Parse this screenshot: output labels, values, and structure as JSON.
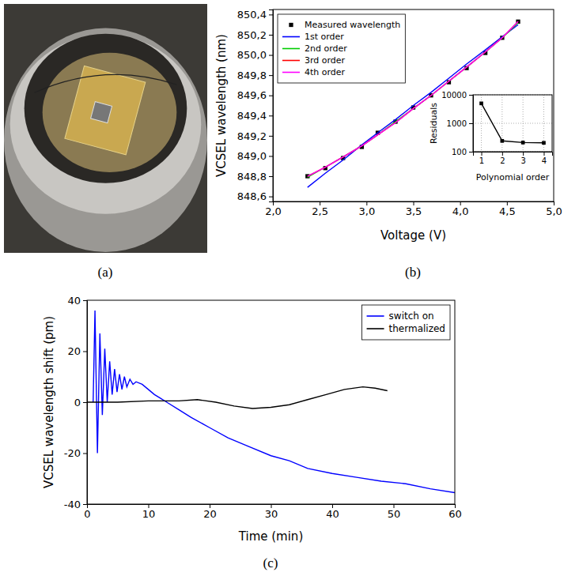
{
  "chart_data": [
    {
      "type": "image",
      "caption": "(a)"
    },
    {
      "type": "line",
      "caption": "(b)",
      "x_label": "Voltage (V)",
      "y_label": "VCSEL wavelength (nm)",
      "xlim": [
        2,
        5
      ],
      "xticks": [
        {
          "value": 2,
          "label": "2,0"
        },
        {
          "value": 2.5,
          "label": "2,5"
        },
        {
          "value": 3,
          "label": "3,0"
        },
        {
          "value": 3.5,
          "label": "3,5"
        },
        {
          "value": 4,
          "label": "4,0"
        },
        {
          "value": 4.5,
          "label": "4,5"
        },
        {
          "value": 5,
          "label": "5,0"
        }
      ],
      "ylim": [
        848.55,
        850.45
      ],
      "yticks": [
        {
          "value": 848.6,
          "label": "848,6"
        },
        {
          "value": 848.8,
          "label": "848,8"
        },
        {
          "value": 849.0,
          "label": "849,0"
        },
        {
          "value": 849.2,
          "label": "849,2"
        },
        {
          "value": 849.4,
          "label": "849,4"
        },
        {
          "value": 849.6,
          "label": "849,6"
        },
        {
          "value": 849.8,
          "label": "849,8"
        },
        {
          "value": 850.0,
          "label": "850,0"
        },
        {
          "value": 850.2,
          "label": "850,2"
        },
        {
          "value": 850.4,
          "label": "850,4"
        }
      ],
      "grid": false,
      "legend": "upper left",
      "x": [
        2.37,
        2.56,
        2.75,
        2.95,
        3.12,
        3.31,
        3.5,
        3.69,
        3.88,
        4.07,
        4.27,
        4.45,
        4.62
      ],
      "series": [
        {
          "name": "Measured wavelength",
          "type": "scatter",
          "marker": "square",
          "color": "#000000",
          "values": [
            848.8,
            848.88,
            848.98,
            849.09,
            849.23,
            849.34,
            849.48,
            849.6,
            849.73,
            849.87,
            850.02,
            850.17,
            850.33
          ]
        },
        {
          "name": "1st order",
          "type": "line",
          "color": "#0000ff",
          "values": [
            848.69,
            848.83,
            848.96,
            849.11,
            849.23,
            849.36,
            849.5,
            849.63,
            849.77,
            849.91,
            850.05,
            850.18,
            850.3
          ]
        },
        {
          "name": "2nd order",
          "type": "line",
          "color": "#00cc00",
          "values": [
            848.79,
            848.89,
            848.99,
            849.1,
            849.21,
            849.34,
            849.47,
            849.6,
            849.74,
            849.88,
            850.03,
            850.17,
            850.32
          ]
        },
        {
          "name": "3rd order",
          "type": "line",
          "color": "#ff0000",
          "values": [
            848.8,
            848.89,
            848.99,
            849.1,
            849.21,
            849.33,
            849.47,
            849.6,
            849.74,
            849.88,
            850.03,
            850.17,
            850.33
          ]
        },
        {
          "name": "4th order",
          "type": "line",
          "color": "#ff00ff",
          "values": [
            848.8,
            848.89,
            848.99,
            849.1,
            849.21,
            849.33,
            849.47,
            849.6,
            849.74,
            849.88,
            850.03,
            850.17,
            850.33
          ]
        }
      ]
    },
    {
      "type": "line",
      "x_label": "Polynomial order",
      "y_label": "Residuals",
      "log": "y",
      "grid": true,
      "marker": "square",
      "color": "#000000",
      "xlim": [
        0.6,
        4.4
      ],
      "xticks": [
        1,
        2,
        3,
        4
      ],
      "ylim": [
        100,
        10000
      ],
      "yticks": [
        100,
        1000,
        10000
      ],
      "x": [
        1,
        2,
        3,
        4
      ],
      "values": [
        5000,
        240,
        210,
        205
      ]
    },
    {
      "type": "line",
      "caption": "(c)",
      "x_label": "Time (min)",
      "y_label": "VCSEL wavelength shift (pm)",
      "xlim": [
        0,
        60
      ],
      "xticks": [
        0,
        10,
        20,
        30,
        40,
        50,
        60
      ],
      "ylim": [
        -40,
        40
      ],
      "yticks": [
        -40,
        -20,
        0,
        20,
        40
      ],
      "grid": false,
      "legend": "upper right",
      "series": [
        {
          "name": "switch on",
          "color": "#0000ff",
          "x": [
            1,
            1.3,
            1.7,
            2.1,
            2.5,
            2.9,
            3.3,
            3.7,
            4.1,
            4.5,
            4.9,
            5.3,
            5.7,
            6.1,
            6.5,
            7,
            7.5,
            8,
            9,
            10,
            11,
            12,
            13,
            15,
            17,
            20,
            23,
            26,
            30,
            33,
            36,
            40,
            44,
            48,
            52,
            56,
            60
          ],
          "values": [
            0,
            36,
            -20,
            27,
            -5,
            21,
            0,
            16,
            3,
            13,
            4,
            11,
            5,
            10,
            6,
            9,
            7,
            8,
            7,
            5,
            3,
            1.5,
            0,
            -3,
            -6,
            -10,
            -14,
            -17,
            -21,
            -23,
            -26,
            -28,
            -29.5,
            -31,
            -32,
            -34,
            -35.5
          ]
        },
        {
          "name": "thermalized",
          "color": "#000000",
          "x": [
            0,
            5,
            10,
            15,
            18,
            21,
            24,
            27,
            30,
            33,
            36,
            39,
            42,
            45,
            47,
            49
          ],
          "values": [
            0,
            0,
            0.5,
            0.5,
            1,
            0,
            -1.5,
            -2.5,
            -2,
            -1,
            1,
            3,
            5,
            6,
            5.5,
            4.5
          ]
        }
      ]
    }
  ]
}
